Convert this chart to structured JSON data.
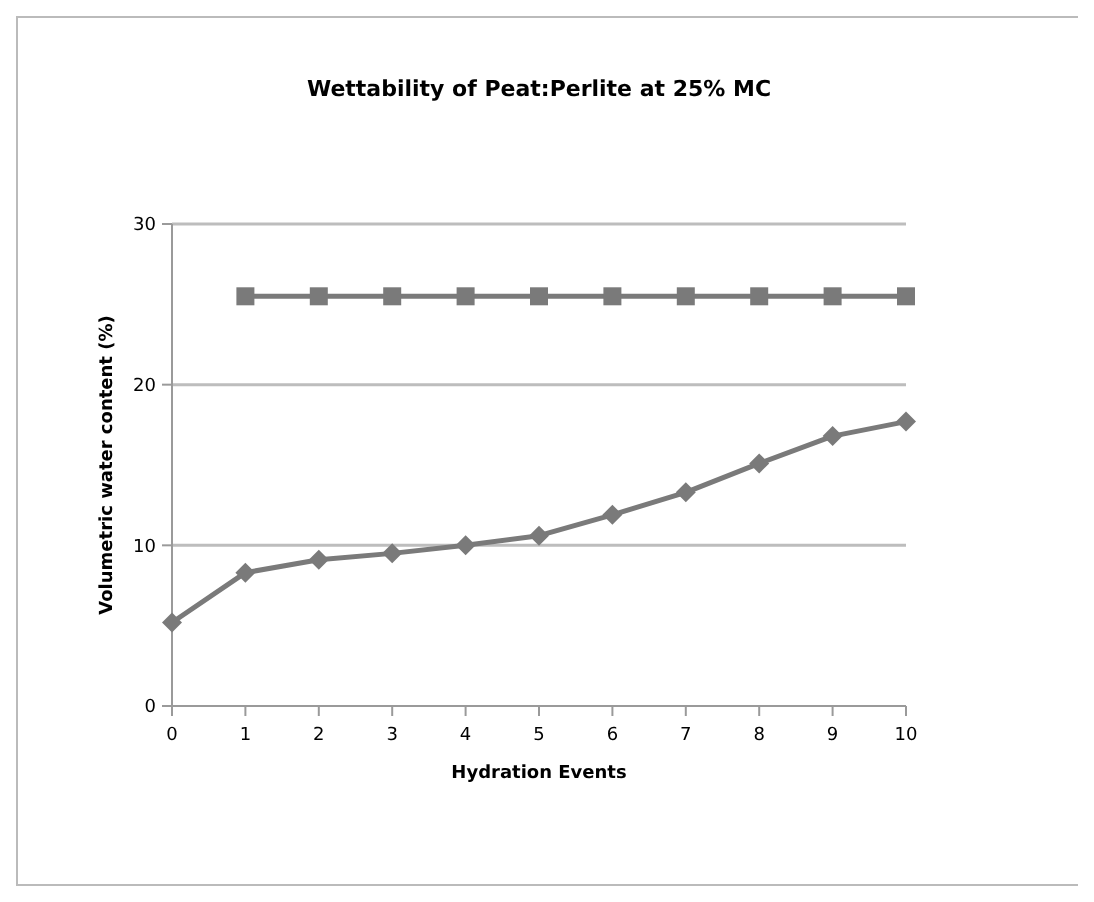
{
  "chart_data": {
    "type": "line",
    "title": "Wettability of Peat:Perlite at 25% MC",
    "xlabel": "Hydration Events",
    "ylabel": "Volumetric water content (%)",
    "categories": [
      "0",
      "1",
      "2",
      "3",
      "4",
      "5",
      "6",
      "7",
      "8",
      "9",
      "10"
    ],
    "series": [
      {
        "color": "#7a7a7a",
        "marker": "diamond",
        "values": [
          5.2,
          8.3,
          9.1,
          9.5,
          10.0,
          10.6,
          11.9,
          13.3,
          15.1,
          16.8,
          17.7
        ]
      },
      {
        "color": "#7a7a7a",
        "marker": "square",
        "values": [
          null,
          25.5,
          25.5,
          25.5,
          25.5,
          25.5,
          25.5,
          25.5,
          25.5,
          25.5,
          25.5
        ]
      }
    ],
    "ylim": [
      0,
      30
    ],
    "yticks": [
      0,
      10,
      20,
      30
    ],
    "grid": "y"
  }
}
